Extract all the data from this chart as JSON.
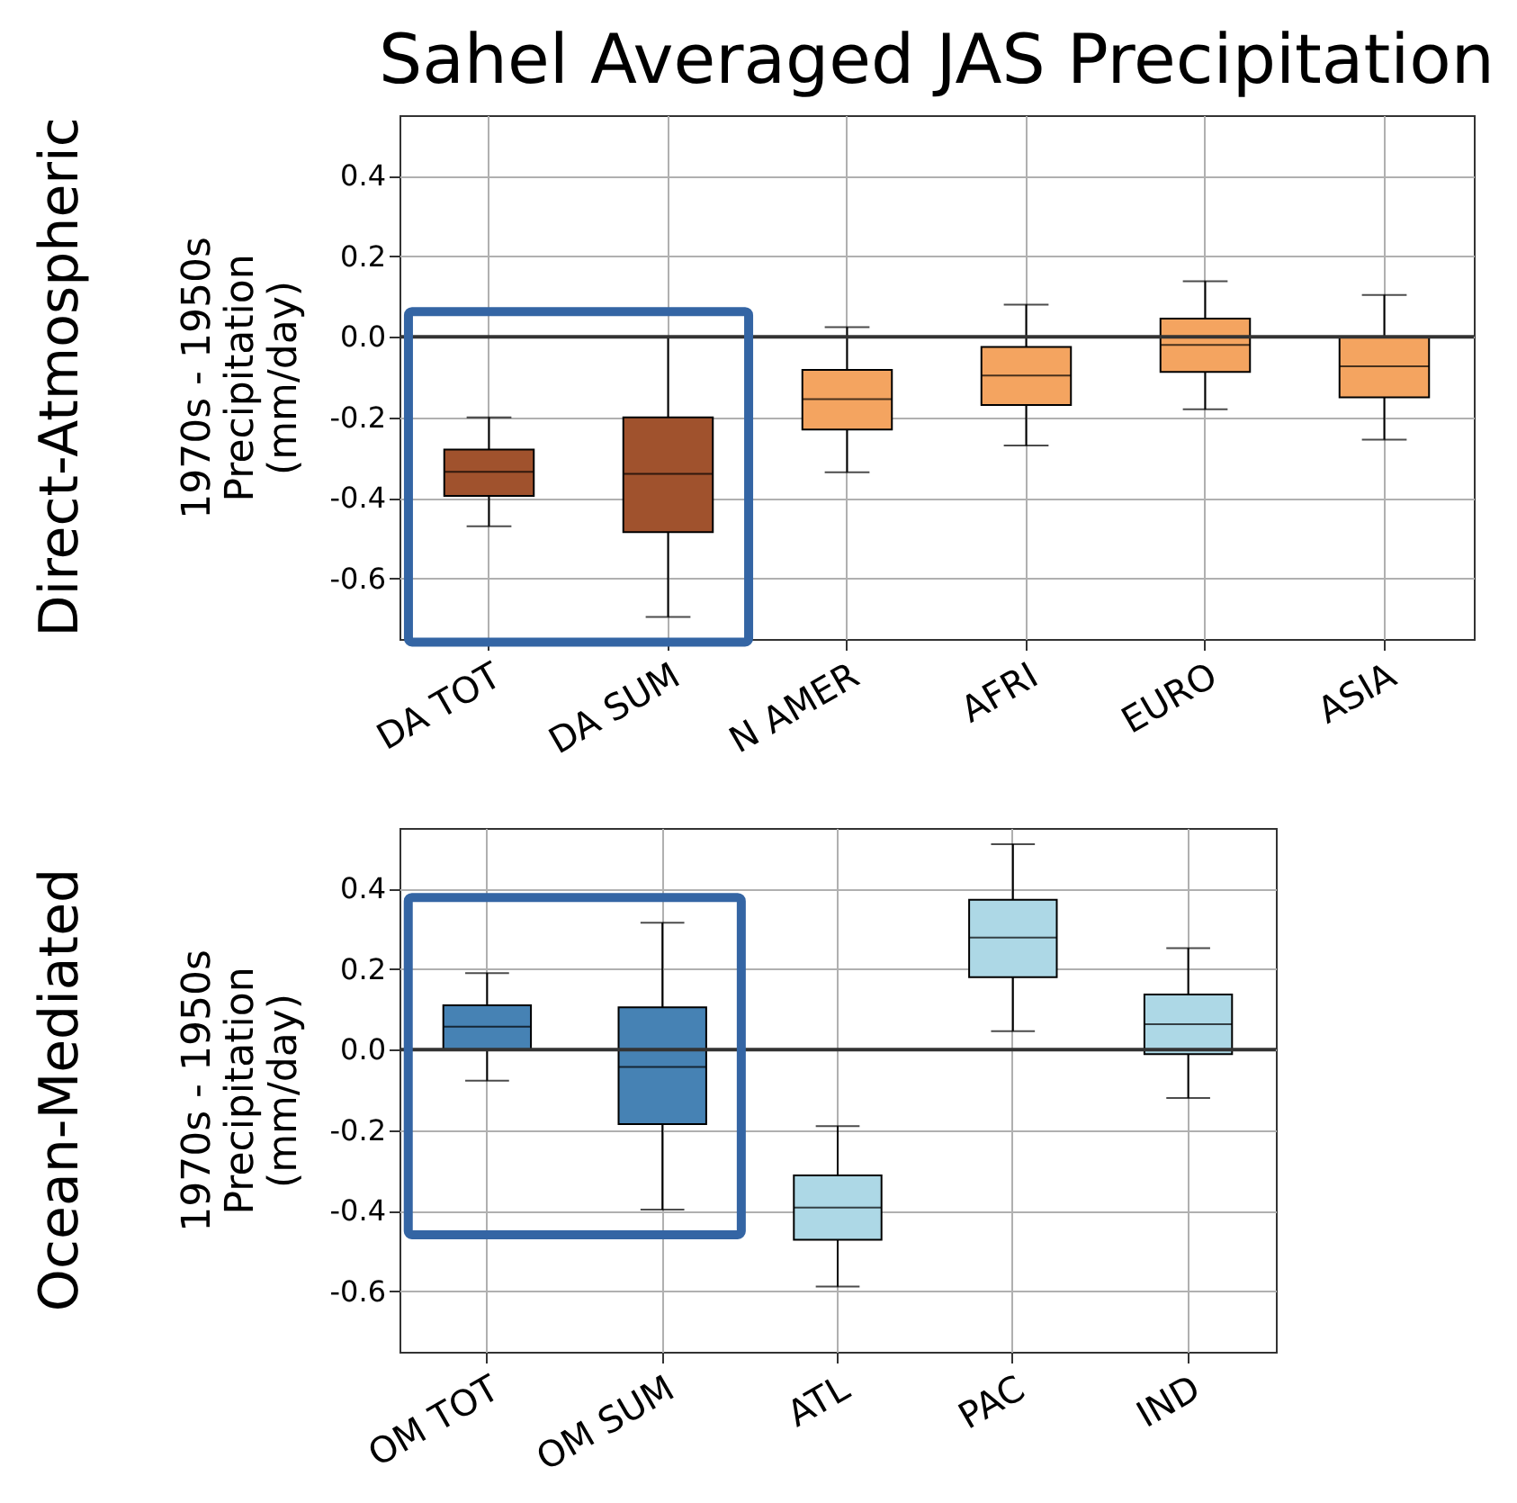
{
  "chart_data": [
    {
      "type": "box",
      "title": "Sahel Averaged JAS Precipitation",
      "ylabel": "1970s - 1950s\nPrecipitation\n(mm/day)",
      "annotations": [
        "Direct-Atmospheric"
      ],
      "categories": [
        "DA TOT",
        "DA SUM",
        "N AMER",
        "AFRI",
        "EURO",
        "ASIA"
      ],
      "colors": [
        "#a0522d",
        "#a0522d",
        "#f4a460",
        "#f4a460",
        "#f4a460",
        "#f4a460"
      ],
      "boxes": [
        {
          "low": -0.47,
          "q1": -0.395,
          "median": -0.335,
          "q3": -0.28,
          "high": -0.2
        },
        {
          "low": -0.695,
          "q1": -0.485,
          "median": -0.34,
          "q3": -0.2,
          "high": 0.0
        },
        {
          "low": -0.336,
          "q1": -0.23,
          "median": -0.155,
          "q3": -0.082,
          "high": 0.024
        },
        {
          "low": -0.27,
          "q1": -0.169,
          "median": -0.096,
          "q3": -0.025,
          "high": 0.08
        },
        {
          "low": -0.18,
          "q1": -0.087,
          "median": -0.02,
          "q3": 0.045,
          "high": 0.138
        },
        {
          "low": -0.255,
          "q1": -0.15,
          "median": -0.073,
          "q3": 0.0,
          "high": 0.104
        }
      ],
      "ylim": [
        -0.75,
        0.55
      ],
      "yticks": [
        -0.6,
        -0.4,
        -0.2,
        {
          "value": 0,
          "label": "0.0"
        },
        0.2,
        0.4
      ],
      "ref_lines": [
        {
          "axis": "y",
          "value": 0,
          "color": "#333333"
        }
      ],
      "grid": true
    },
    {
      "type": "box",
      "ylabel": "1970s - 1950s\nPrecipitation\n(mm/day)",
      "annotations": [
        "Ocean-Mediated"
      ],
      "categories": [
        "OM TOT",
        "OM SUM",
        "ATL",
        "PAC",
        "IND"
      ],
      "colors": [
        "#4682b4",
        "#4682b4",
        "#add8e6",
        "#add8e6",
        "#add8e6"
      ],
      "boxes": [
        {
          "low": -0.077,
          "q1": 0.0,
          "median": 0.057,
          "q3": 0.11,
          "high": 0.19
        },
        {
          "low": -0.397,
          "q1": -0.185,
          "median": -0.043,
          "q3": 0.105,
          "high": 0.315
        },
        {
          "low": -0.588,
          "q1": -0.472,
          "median": -0.392,
          "q3": -0.312,
          "high": -0.19
        },
        {
          "low": 0.046,
          "q1": 0.18,
          "median": 0.278,
          "q3": 0.372,
          "high": 0.51
        },
        {
          "low": -0.12,
          "q1": -0.011,
          "median": 0.063,
          "q3": 0.137,
          "high": 0.252
        }
      ],
      "ylim": [
        -0.75,
        0.55
      ],
      "yticks": [
        -0.6,
        -0.4,
        -0.2,
        {
          "value": 0,
          "label": "0.0"
        },
        0.2,
        0.4
      ],
      "ref_lines": [
        {
          "axis": "y",
          "value": 0,
          "color": "#333333"
        }
      ],
      "grid": true
    }
  ]
}
